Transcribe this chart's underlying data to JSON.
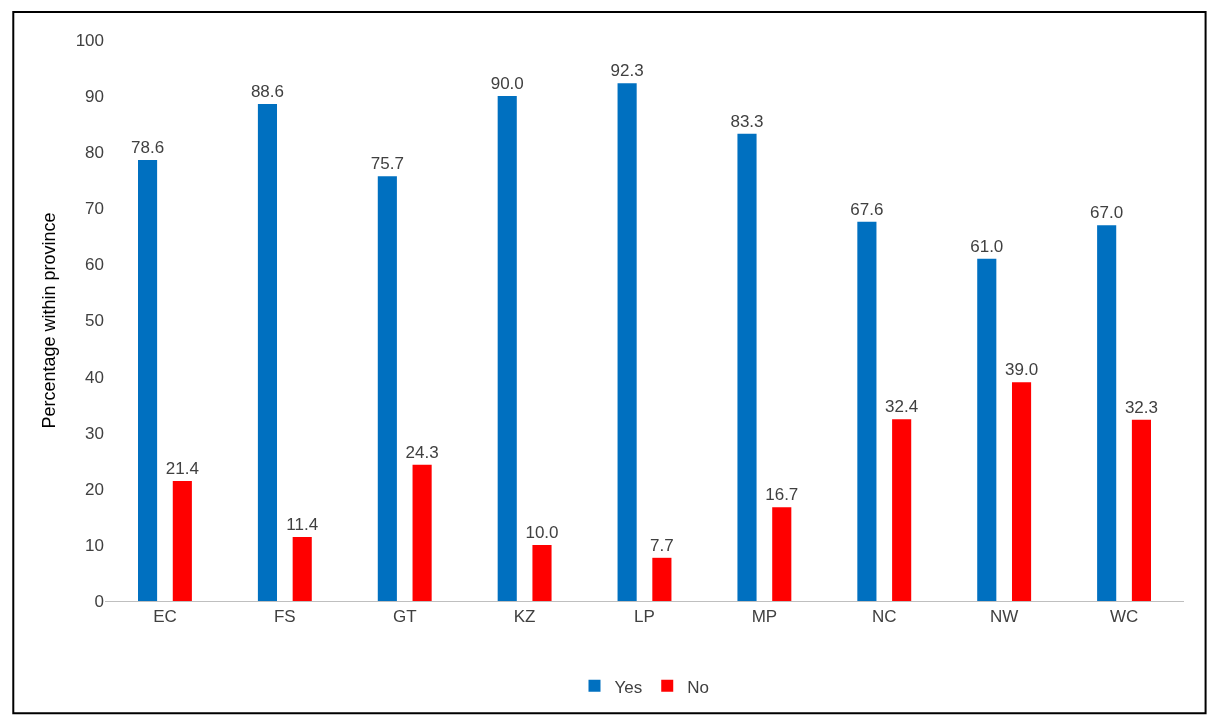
{
  "chart_data": {
    "type": "bar",
    "ylabel": "Percentage within province",
    "categories": [
      "EC",
      "FS",
      "GT",
      "KZ",
      "LP",
      "MP",
      "NC",
      "NW",
      "WC"
    ],
    "series": [
      {
        "name": "Yes",
        "color": "#0070c0",
        "values": [
          78.6,
          88.6,
          75.7,
          90.0,
          92.3,
          83.3,
          67.6,
          61.0,
          67.0
        ],
        "value_labels": [
          "78.6",
          "88.6",
          "75.7",
          "90.0",
          "92.3",
          "83.3",
          "67.6",
          "61.0",
          "67.0"
        ]
      },
      {
        "name": "No",
        "color": "#ff0000",
        "values": [
          21.4,
          11.4,
          24.3,
          10.0,
          7.7,
          16.7,
          32.4,
          39.0,
          32.3
        ],
        "value_labels": [
          "21.4",
          "11.4",
          "24.3",
          "10.0",
          "7.7",
          "16.7",
          "32.4",
          "39.0",
          "32.3"
        ]
      }
    ],
    "ylim": [
      0,
      100
    ],
    "yticks": [
      0,
      10,
      20,
      30,
      40,
      50,
      60,
      70,
      80,
      90,
      100
    ],
    "legend": "bottom"
  }
}
